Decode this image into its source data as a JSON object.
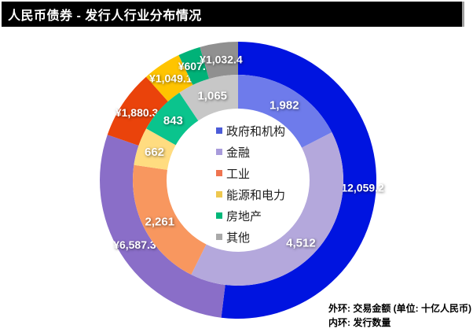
{
  "header": {
    "title": "人民币债券 - 发行人行业分布情况"
  },
  "chart_data": {
    "type": "pie",
    "subtype": "double-donut",
    "title": "人民币债券 - 发行人行业分布情况",
    "categories": [
      "政府和机构",
      "金融",
      "工业",
      "能源和电力",
      "房地产",
      "其他"
    ],
    "direction": "clockwise",
    "start_angle_deg": 0,
    "legend_position": "center",
    "rings": [
      {
        "id": "outer",
        "name": "交易金额",
        "unit": "十亿人民币",
        "values": [
          12059.2,
          6587.3,
          1880.3,
          1049.1,
          607.5,
          1032.4
        ],
        "labels": [
          "¥12,059.2",
          "¥6,587.3",
          "¥1,880.3",
          "¥1,049.1",
          "¥607.5",
          "¥1,032.4"
        ],
        "colors": [
          "#0014e0",
          "#8a6ec8",
          "#ea430b",
          "#ffc400",
          "#00b278",
          "#909090"
        ]
      },
      {
        "id": "inner",
        "name": "发行数量",
        "values": [
          1982,
          4512,
          2261,
          662,
          843,
          1065
        ],
        "labels": [
          "1,982",
          "4,512",
          "2,261",
          "662",
          "843",
          "1,065"
        ],
        "colors": [
          "#6e7beb",
          "#b4a8dc",
          "#f8975f",
          "#ffdc80",
          "#0ac48d",
          "#c7c7c7"
        ]
      }
    ]
  },
  "legend": {
    "items": [
      {
        "label": "政府和机构",
        "color": "#4c5cd8"
      },
      {
        "label": "金融",
        "color": "#a89bdb"
      },
      {
        "label": "工业",
        "color": "#ef7450"
      },
      {
        "label": "能源和电力",
        "color": "#eec84f"
      },
      {
        "label": "房地产",
        "color": "#00b779"
      },
      {
        "label": "其他",
        "color": "#a9a9a9"
      }
    ]
  },
  "footnote": {
    "line1": "外环: 交易金额 (单位: 十亿人民币)",
    "line2": "内环: 发行数量"
  }
}
